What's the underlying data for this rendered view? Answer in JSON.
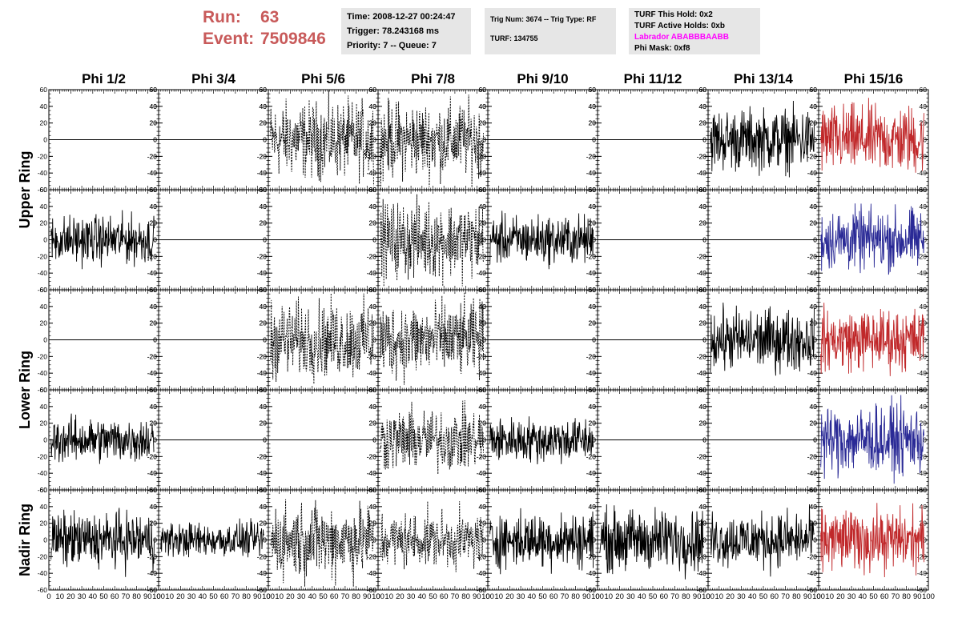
{
  "header": {
    "run_label": "Run:",
    "run_value": "63",
    "event_label": "Event:",
    "event_value": "7509846",
    "time_line": "Time: 2008-12-27 00:24:47",
    "trigger_line": "Trigger: 78.243168 ms",
    "priority_line": "Priority: 7 -- Queue: 7",
    "trig_line": "Trig Num: 3674 -- Trig Type: RF",
    "turf_line": "TURF: 134755",
    "turf_hold_line": "TURF This Hold: 0x2",
    "turf_active_line": "TURF Active Holds: 0xb",
    "labrador_line": "Labrador ABABBBAABB",
    "phi_mask_line": "Phi Mask: 0xf8",
    "labrador_color": "#ff00ff",
    "run_color": "#c85a5a"
  },
  "chart_data": {
    "type": "line",
    "columns": [
      "Phi 1/2",
      "Phi 3/4",
      "Phi 5/6",
      "Phi 7/8",
      "Phi 9/10",
      "Phi 11/12",
      "Phi 13/14",
      "Phi 15/16"
    ],
    "rows": [
      "Upper Ring",
      "Lower Ring",
      "Nadir Ring"
    ],
    "xlim": [
      0,
      100
    ],
    "ylim": [
      -60,
      60
    ],
    "x_ticks": [
      0,
      10,
      20,
      30,
      40,
      50,
      60,
      70,
      80,
      90,
      100
    ],
    "y_ticks": [
      -60,
      -40,
      -20,
      0,
      20,
      40,
      60
    ],
    "series_colors": {
      "solid": "#000000",
      "dashed": "#000000",
      "red": "#c0282a",
      "blue": "#2a2a96",
      "flat": "#000000"
    },
    "panels": [
      [
        "flat",
        "flat",
        "dashed",
        "dashed",
        "flat",
        "flat",
        "solid",
        "red"
      ],
      [
        "solid",
        "flat",
        "flat",
        "dashed",
        "solid",
        "flat",
        "flat",
        "blue"
      ],
      [
        "flat",
        "flat",
        "dashed",
        "dashed",
        "flat",
        "flat",
        "solid",
        "red"
      ],
      [
        "solid",
        "flat",
        "flat",
        "dashed",
        "solid",
        "flat",
        "flat",
        "blue"
      ],
      [
        "solid",
        "solid",
        "dashed",
        "dashed",
        "solid",
        "solid",
        "solid",
        "red"
      ]
    ],
    "amplitudes": [
      [
        0,
        0,
        22,
        22,
        0,
        0,
        18,
        20
      ],
      [
        14,
        0,
        0,
        22,
        14,
        0,
        0,
        18
      ],
      [
        0,
        0,
        22,
        22,
        0,
        0,
        18,
        18
      ],
      [
        13,
        0,
        0,
        18,
        13,
        0,
        0,
        20
      ],
      [
        16,
        10,
        22,
        16,
        16,
        18,
        16,
        18
      ]
    ]
  }
}
